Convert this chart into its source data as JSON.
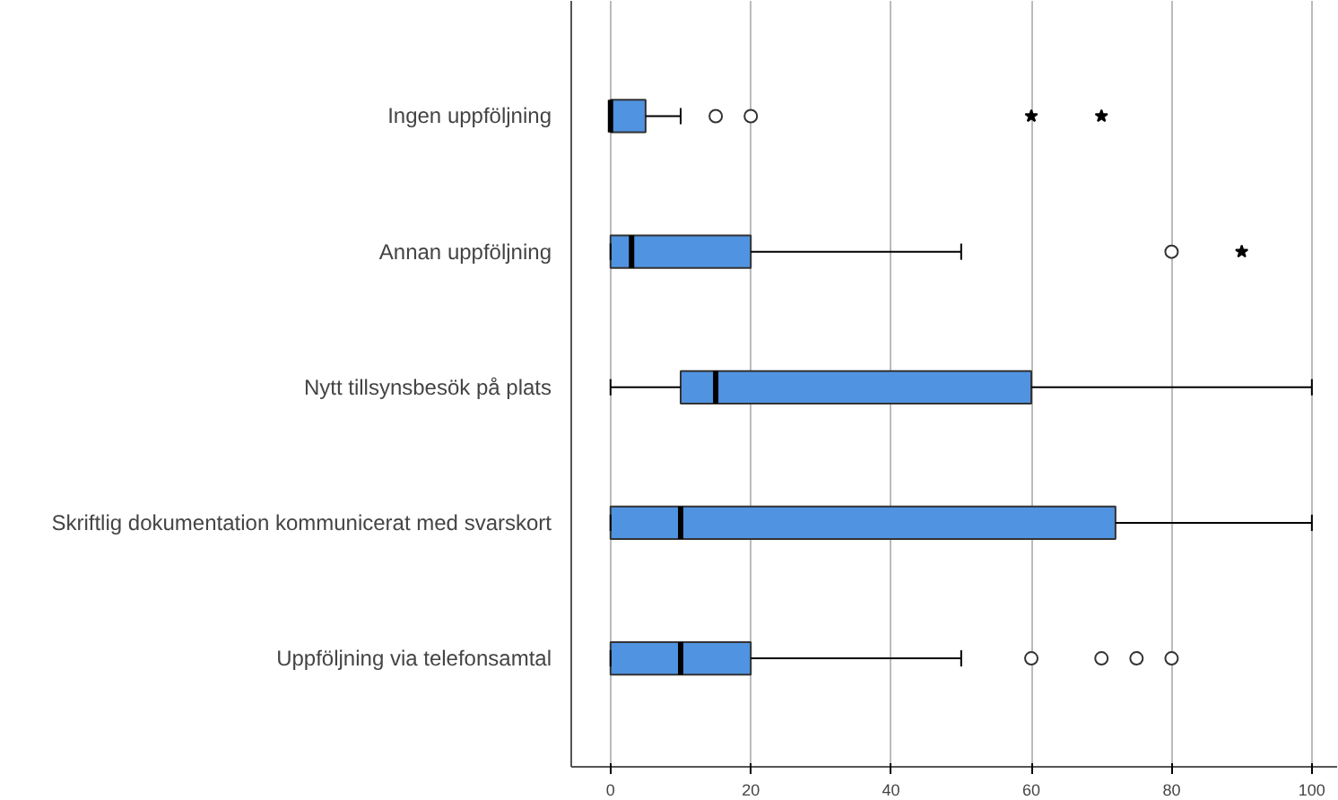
{
  "chart_data": {
    "type": "box",
    "orientation": "horizontal",
    "categories": [
      "Ingen uppföljning",
      "Annan uppföljning",
      "Nytt tillsynsbesök på plats",
      "Skriftlig dokumentation kommunicerat med svarskort",
      "Uppföljning via telefonsamtal"
    ],
    "series": [
      {
        "type": "box",
        "color": "#5093e0",
        "boxes": [
          {
            "low": 0,
            "q1": 0,
            "median": 0,
            "q3": 5,
            "high": 10,
            "outliers": [
              15,
              20
            ]
          },
          {
            "low": 0,
            "q1": 0,
            "median": 3,
            "q3": 20,
            "high": 50,
            "outliers": [
              80
            ]
          },
          {
            "low": 0,
            "q1": 10,
            "median": 15,
            "q3": 60,
            "high": 100
          },
          {
            "low": 0,
            "q1": 0,
            "median": 10,
            "q3": 72,
            "high": 100
          },
          {
            "low": 0,
            "q1": 0,
            "median": 10,
            "q3": 20,
            "high": 50,
            "outliers": [
              60,
              70,
              75,
              80
            ]
          }
        ]
      },
      {
        "type": "scatter",
        "marker": "star",
        "color": "#000000",
        "x": [
          "Ingen uppföljning",
          "Ingen uppföljning",
          "Annan uppföljning"
        ],
        "values": [
          60,
          70,
          90
        ]
      }
    ],
    "xlim": [
      -5.6,
      103.6
    ],
    "xticks": [
      0,
      20,
      40,
      60,
      80,
      100
    ],
    "grid": "x"
  }
}
